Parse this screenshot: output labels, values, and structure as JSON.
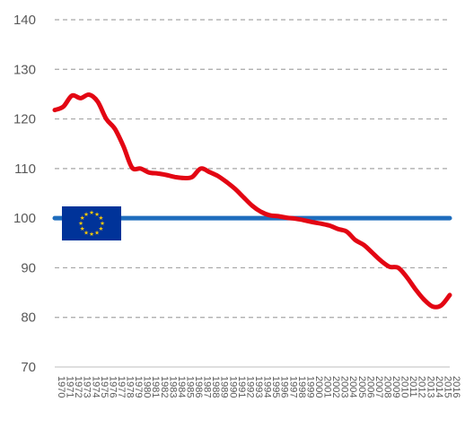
{
  "chart_data": {
    "type": "line",
    "title": "",
    "xlabel": "",
    "ylabel": "",
    "ylim": [
      70,
      140
    ],
    "yticks": [
      70,
      80,
      90,
      100,
      110,
      120,
      130,
      140
    ],
    "grid": true,
    "xlim": [
      1970,
      2016
    ],
    "x": [
      1970,
      1971,
      1972,
      1973,
      1974,
      1975,
      1976,
      1977,
      1978,
      1979,
      1980,
      1981,
      1982,
      1983,
      1984,
      1985,
      1986,
      1987,
      1988,
      1989,
      1990,
      1991,
      1992,
      1993,
      1994,
      1995,
      1996,
      1997,
      1998,
      1999,
      2000,
      2001,
      2002,
      2003,
      2004,
      2005,
      2006,
      2007,
      2008,
      2009,
      2010,
      2011,
      2012,
      2013,
      2014,
      2015,
      2016
    ],
    "xtick_labels": [
      "1970",
      "1971",
      "1972",
      "1973",
      "1974",
      "1975",
      "1976",
      "1977",
      "1978",
      "1979",
      "1980",
      "1981",
      "1982",
      "1983",
      "1984",
      "1985",
      "1986",
      "1987",
      "1988",
      "1989",
      "1990",
      "1991",
      "1992",
      "1993",
      "1994",
      "1995",
      "1996",
      "1997",
      "1998",
      "1999",
      "2000",
      "2001",
      "2002",
      "2003",
      "2004",
      "2005",
      "2006",
      "2007",
      "2008",
      "2009",
      "2010",
      "2011",
      "2012",
      "2013",
      "2014",
      "2015",
      "2016"
    ],
    "series": [
      {
        "color": "#e30613",
        "values": [
          121.8,
          122.5,
          124.7,
          124.2,
          124.9,
          123.5,
          120.0,
          118.0,
          114.5,
          110.2,
          110.0,
          109.2,
          109.0,
          108.7,
          108.3,
          108.1,
          108.3,
          110.0,
          109.3,
          108.5,
          107.3,
          105.9,
          104.2,
          102.5,
          101.3,
          100.6,
          100.4,
          100.1,
          99.9,
          99.6,
          99.2,
          98.9,
          98.5,
          97.8,
          97.3,
          95.6,
          94.6,
          93.0,
          91.4,
          90.2,
          90.0,
          88.1,
          85.7,
          83.6,
          82.2,
          82.4,
          84.5
        ]
      },
      {
        "color": "#1f6dbd",
        "values": [
          100,
          100,
          100,
          100,
          100,
          100,
          100,
          100,
          100,
          100,
          100,
          100,
          100,
          100,
          100,
          100,
          100,
          100,
          100,
          100,
          100,
          100,
          100,
          100,
          100,
          100,
          100,
          100,
          100,
          100,
          100,
          100,
          100,
          100,
          100,
          100,
          100,
          100,
          100,
          100,
          100,
          100,
          100,
          100,
          100,
          100,
          100
        ]
      }
    ]
  },
  "legend": {
    "icon": "eu-flag-icon",
    "flag_color": "#003399",
    "star_color": "#ffcc00"
  }
}
